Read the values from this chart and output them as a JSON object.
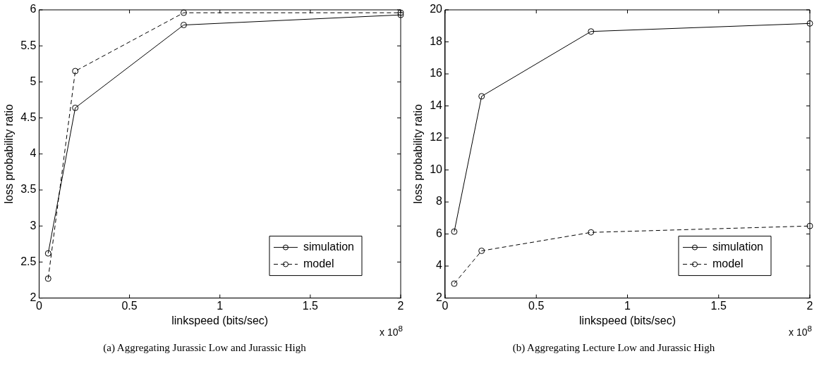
{
  "chart_data": [
    {
      "type": "line",
      "xlabel": "linkspeed (bits/sec)",
      "ylabel": "loss probability ratio",
      "x": [
        0.05,
        0.2,
        0.8,
        2
      ],
      "xlim": [
        0,
        2
      ],
      "xticks": [
        0,
        0.5,
        1,
        1.5,
        2
      ],
      "ylim": [
        2,
        6
      ],
      "yticks": [
        2,
        2.5,
        3,
        3.5,
        4,
        4.5,
        5,
        5.5,
        6
      ],
      "grid": false,
      "legend": "bottom right",
      "marker": "circle",
      "series": [
        {
          "name": "simulation",
          "color": "#000000",
          "line_style": "solid",
          "values": [
            2.62,
            4.64,
            5.79,
            5.93
          ]
        },
        {
          "name": "model",
          "color": "#000000",
          "line_style": "dashed",
          "values": [
            2.27,
            5.15,
            5.96,
            5.96
          ]
        }
      ],
      "annotations": [
        "x 10$^{8}$",
        "(a) Aggregating Jurassic Low and Jurassic High"
      ]
    },
    {
      "type": "line",
      "xlabel": "linkspeed (bits/sec)",
      "ylabel": "loss probability ratio",
      "x": [
        0.05,
        0.2,
        0.8,
        2
      ],
      "xlim": [
        0,
        2
      ],
      "xticks": [
        0,
        0.5,
        1,
        1.5,
        2
      ],
      "ylim": [
        2,
        20
      ],
      "yticks": [
        2,
        4,
        6,
        8,
        10,
        12,
        14,
        16,
        18,
        20
      ],
      "grid": false,
      "legend": "bottom right",
      "marker": "circle",
      "series": [
        {
          "name": "simulation",
          "color": "#000000",
          "line_style": "solid",
          "values": [
            6.15,
            14.6,
            18.65,
            19.15
          ]
        },
        {
          "name": "model",
          "color": "#000000",
          "line_style": "dashed",
          "values": [
            2.9,
            4.95,
            6.1,
            6.5
          ]
        }
      ],
      "annotations": [
        "x 10$^{8}$",
        "(b) Aggregating Lecture Low and Jurassic High"
      ]
    }
  ]
}
